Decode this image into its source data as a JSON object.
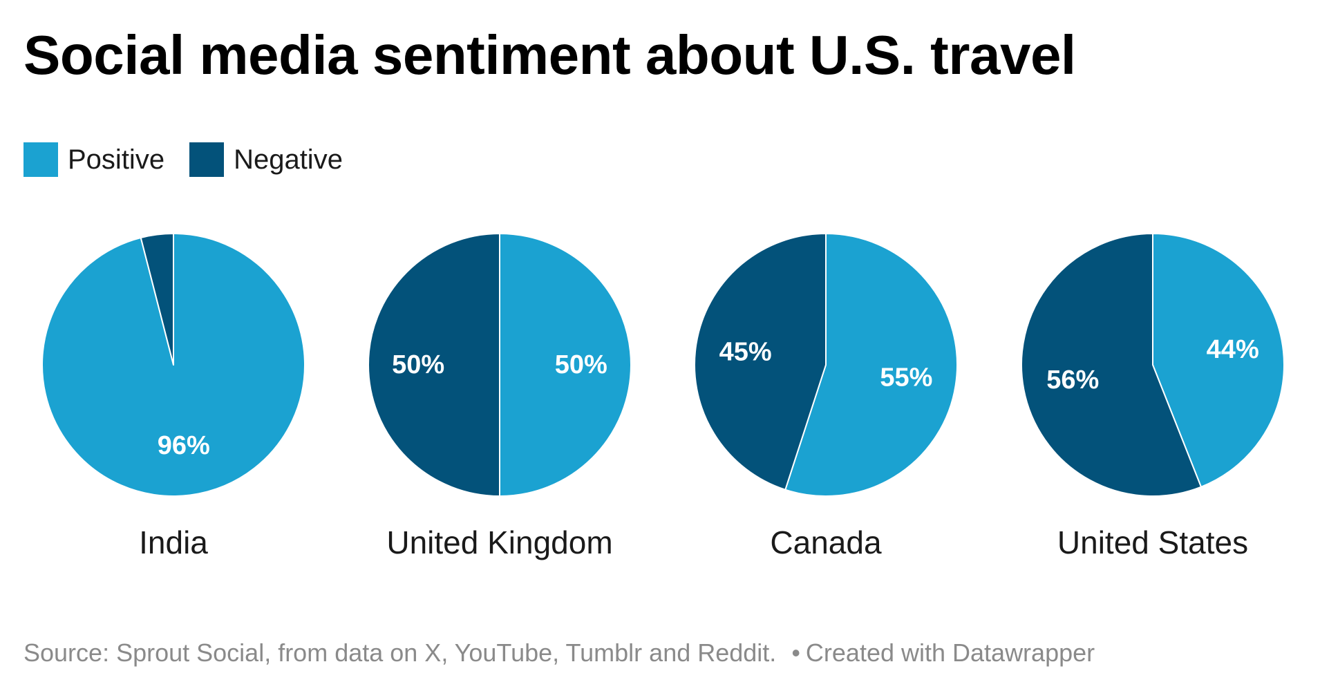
{
  "chart_data": {
    "type": "pie",
    "title": "Social media sentiment about U.S. travel",
    "legend": {
      "placement": "top-left",
      "entries": [
        {
          "name": "Positive",
          "color": "#1ba2d1"
        },
        {
          "name": "Negative",
          "color": "#03527a"
        }
      ]
    },
    "charts": [
      {
        "label": "India",
        "slices": [
          {
            "name": "Positive",
            "value": 96,
            "label": "96%"
          },
          {
            "name": "Negative",
            "value": 4,
            "label": ""
          }
        ]
      },
      {
        "label": "United Kingdom",
        "slices": [
          {
            "name": "Positive",
            "value": 50,
            "label": "50%"
          },
          {
            "name": "Negative",
            "value": 50,
            "label": "50%"
          }
        ]
      },
      {
        "label": "Canada",
        "slices": [
          {
            "name": "Positive",
            "value": 55,
            "label": "55%"
          },
          {
            "name": "Negative",
            "value": 45,
            "label": "45%"
          }
        ]
      },
      {
        "label": "United States",
        "slices": [
          {
            "name": "Positive",
            "value": 44,
            "label": "44%"
          },
          {
            "name": "Negative",
            "value": 56,
            "label": "56%"
          }
        ]
      }
    ]
  },
  "footer": {
    "source": "Source: Sprout Social, from data on X, YouTube, Tumblr and Reddit.",
    "separator": "•",
    "credit": "Created with Datawrapper"
  }
}
